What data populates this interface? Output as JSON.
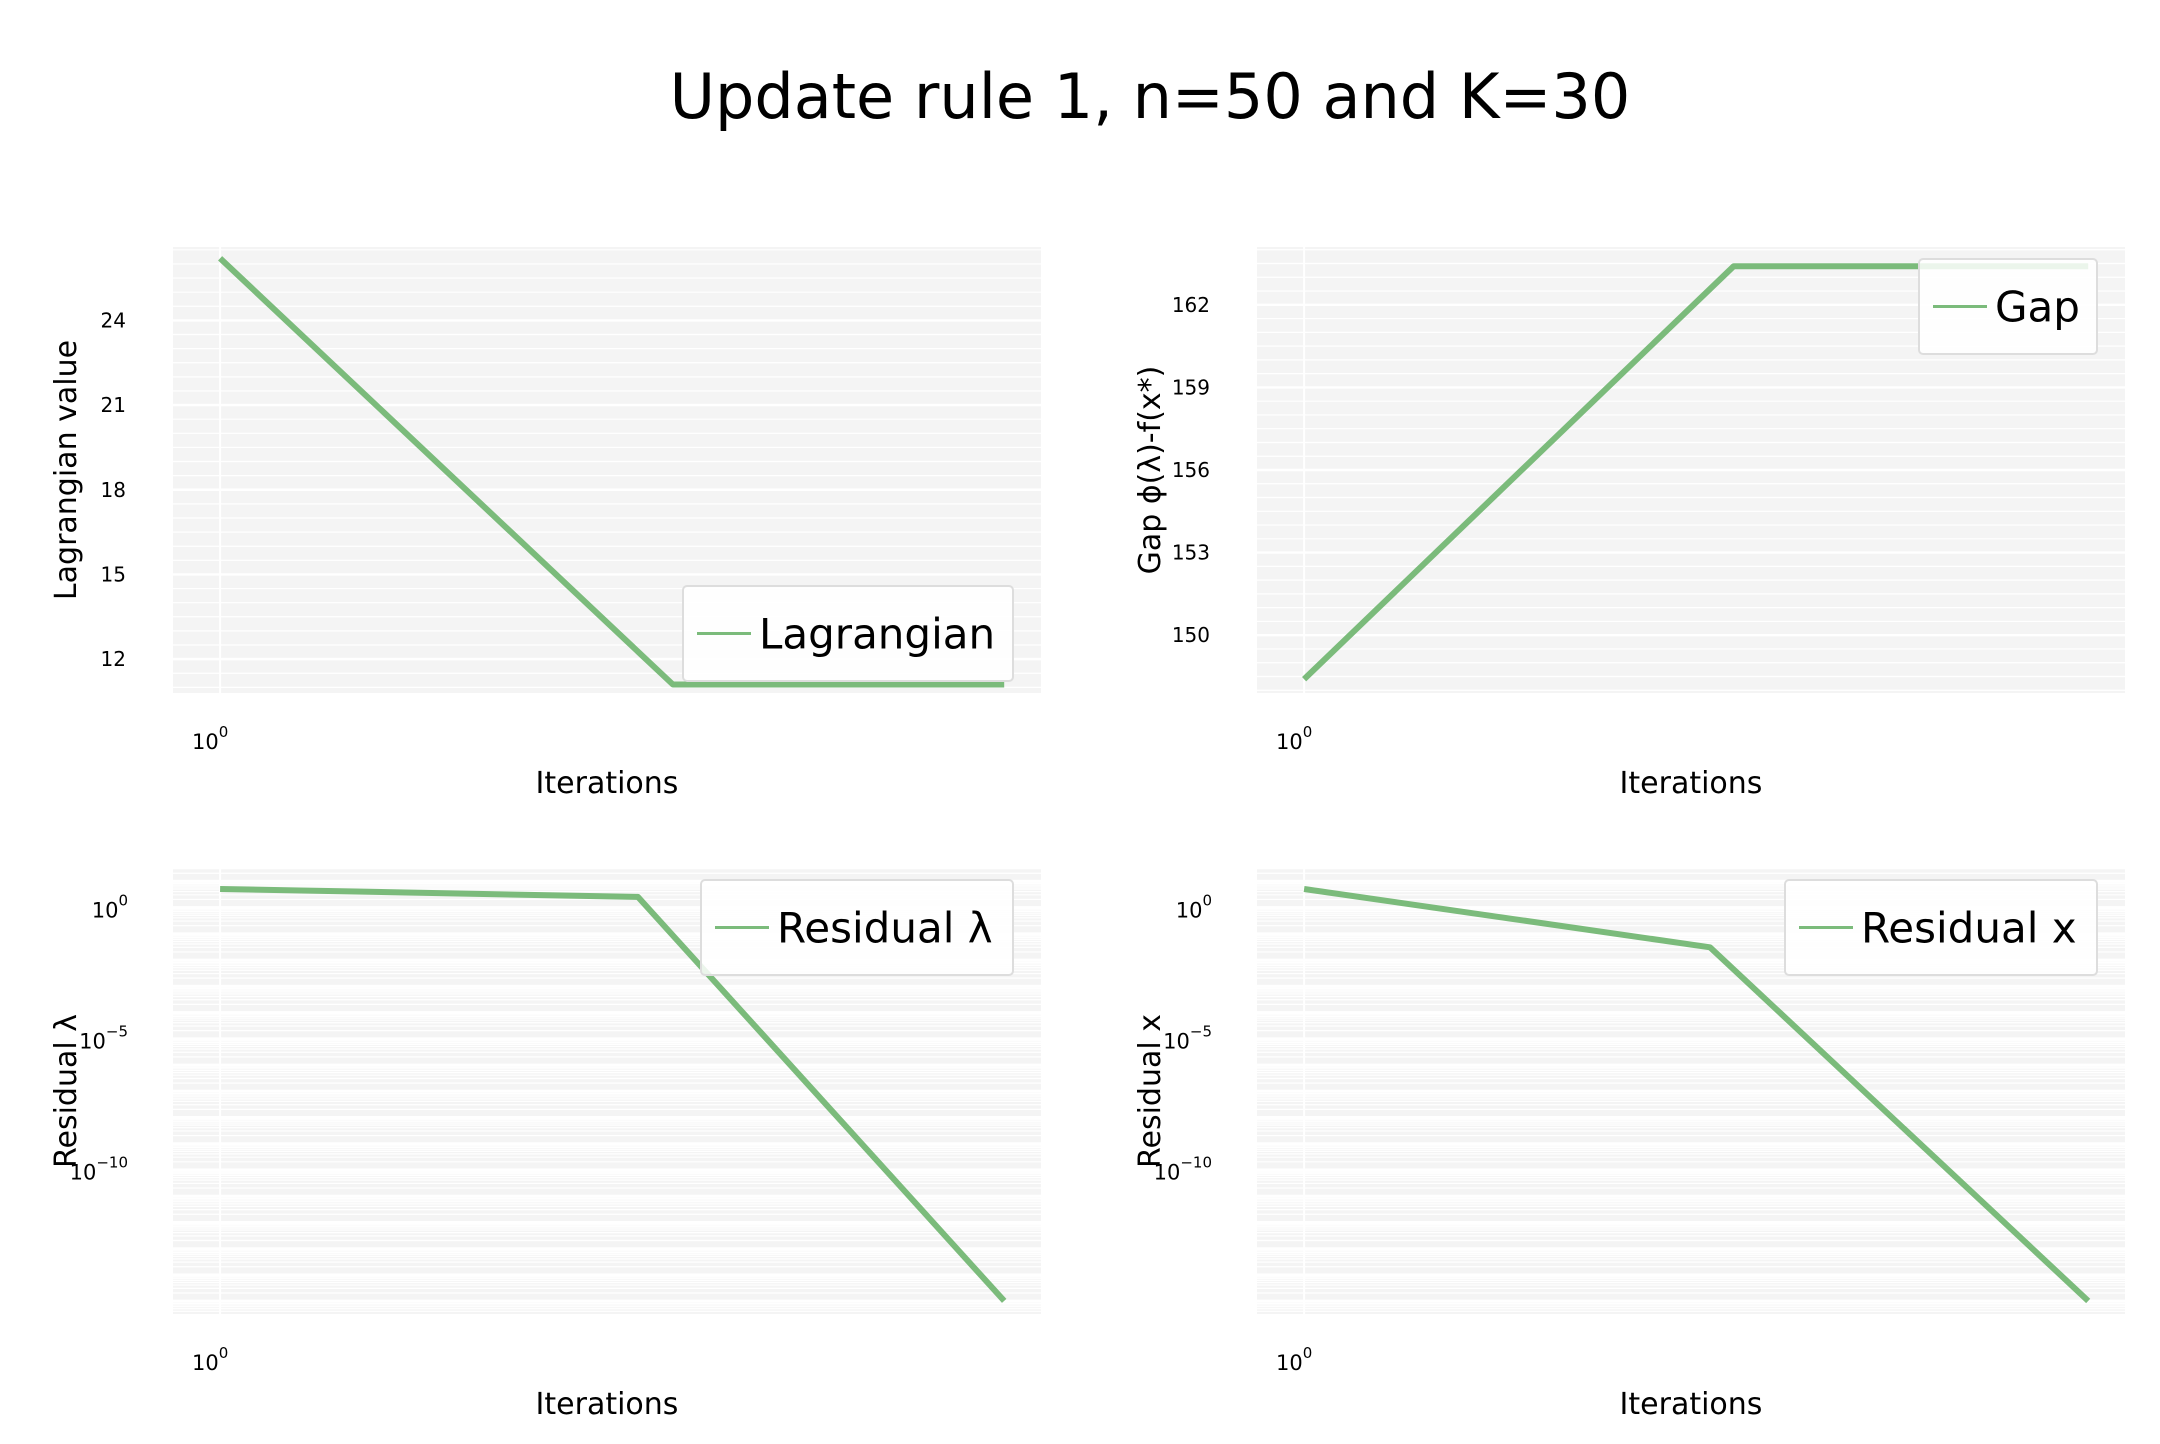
{
  "page_title": "Update rule 1, n=50 and K=30",
  "colors": {
    "line": "#7bbb7b",
    "plot_bg": "#f4f4f4",
    "grid": "#ffffff",
    "legend_border": "#dddddd",
    "text": "#000000"
  },
  "chart_data": [
    {
      "id": "lagrangian",
      "type": "line",
      "title": "",
      "xlabel": "Iterations",
      "ylabel": "Lagrangian value",
      "xscale": "log",
      "xlim": [
        0.97,
        1.7
      ],
      "x_tick_labels": [
        {
          "base": "10",
          "exp": "0",
          "value": 1
        }
      ],
      "ylim": [
        10.8,
        26.6
      ],
      "y_ticks": [
        12,
        15,
        18,
        21,
        24
      ],
      "yscale": "linear",
      "legend": {
        "entries": [
          "Lagrangian"
        ],
        "placement": "lower-right"
      },
      "series": [
        {
          "name": "Lagrangian",
          "x": [
            1,
            1.34,
            1.66
          ],
          "y": [
            26.2,
            11.1,
            11.1
          ]
        }
      ]
    },
    {
      "id": "gap",
      "type": "line",
      "title": "",
      "xlabel": "Iterations",
      "ylabel": "Gap ϕ(λ)-f(x*)",
      "xscale": "log",
      "xlim": [
        0.97,
        1.7
      ],
      "x_tick_labels": [
        {
          "base": "10",
          "exp": "0",
          "value": 1
        }
      ],
      "ylim": [
        147.9,
        164.1
      ],
      "y_ticks": [
        150,
        153,
        156,
        159,
        162
      ],
      "yscale": "linear",
      "legend": {
        "entries": [
          "Gap"
        ],
        "placement": "upper-right"
      },
      "series": [
        {
          "name": "Gap",
          "x": [
            1,
            1.32,
            1.66
          ],
          "y": [
            148.4,
            163.4,
            163.4
          ]
        }
      ]
    },
    {
      "id": "residual-lambda",
      "type": "line",
      "title": "",
      "xlabel": "Iterations",
      "ylabel": "Residual λ",
      "xscale": "log",
      "xlim": [
        0.97,
        1.7
      ],
      "x_tick_labels": [
        {
          "base": "10",
          "exp": "0",
          "value": 1
        }
      ],
      "yscale": "log",
      "ylim_log10": [
        -15.5,
        1.5
      ],
      "y_ticks": [
        {
          "base": "10",
          "exp": "0",
          "value": 1
        },
        {
          "base": "10",
          "exp": "−5",
          "value": 1e-05
        },
        {
          "base": "10",
          "exp": "−10",
          "value": 1e-10
        }
      ],
      "legend": {
        "entries": [
          "Residual λ"
        ],
        "placement": "upper-right"
      },
      "series": [
        {
          "name": "Residual λ",
          "x": [
            1,
            1.31,
            1.66
          ],
          "y": [
            5.0,
            2.5,
            1e-15
          ]
        }
      ]
    },
    {
      "id": "residual-x",
      "type": "line",
      "title": "",
      "xlabel": "Iterations",
      "ylabel": "Residual x",
      "xscale": "log",
      "xlim": [
        0.97,
        1.7
      ],
      "x_tick_labels": [
        {
          "base": "10",
          "exp": "0",
          "value": 1
        }
      ],
      "yscale": "log",
      "ylim_log10": [
        -15.5,
        1.5
      ],
      "y_ticks": [
        {
          "base": "10",
          "exp": "0",
          "value": 1
        },
        {
          "base": "10",
          "exp": "−5",
          "value": 1e-05
        },
        {
          "base": "10",
          "exp": "−10",
          "value": 1e-10
        }
      ],
      "legend": {
        "entries": [
          "Residual x"
        ],
        "placement": "upper-right"
      },
      "series": [
        {
          "name": "Residual x",
          "x": [
            1,
            1.3,
            1.66
          ],
          "y": [
            5.0,
            0.03,
            1e-15
          ]
        }
      ]
    }
  ]
}
